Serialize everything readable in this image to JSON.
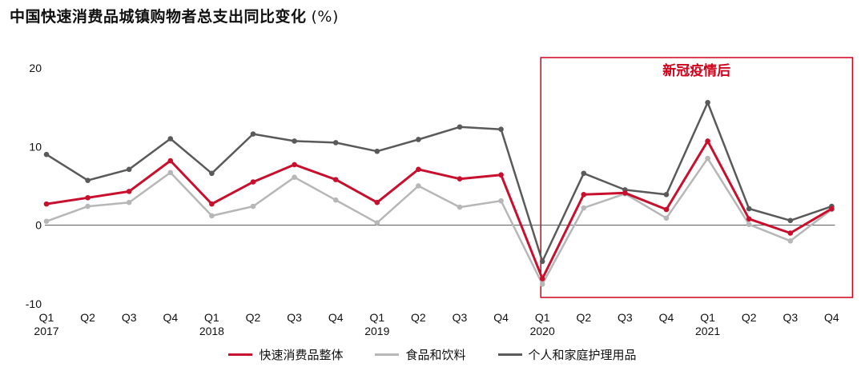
{
  "title": "中国快速消费品城镇购物者总支出同比变化",
  "unit": "(%)",
  "annotation": "新冠疫情后",
  "colors": {
    "overall": "#c8102e",
    "food": "#b7b7b7",
    "personal": "#5a5a5a",
    "annotation_box": "#d0021b",
    "zero_line": "#555555"
  },
  "chart_data": {
    "type": "line",
    "title": "中国快速消费品城镇购物者总支出同比变化 (%)",
    "xlabel": "",
    "ylabel": "",
    "ylim": [
      -10,
      20
    ],
    "yticks": [
      20,
      10,
      0,
      -10
    ],
    "categories": [
      "Q1",
      "Q2",
      "Q3",
      "Q4",
      "Q1",
      "Q2",
      "Q3",
      "Q4",
      "Q1",
      "Q2",
      "Q3",
      "Q4",
      "Q1",
      "Q2",
      "Q3",
      "Q4",
      "Q1",
      "Q2",
      "Q3",
      "Q4"
    ],
    "years": [
      "2017",
      "",
      "",
      "",
      "2018",
      "",
      "",
      "",
      "2019",
      "",
      "",
      "",
      "2020",
      "",
      "",
      "",
      "2021",
      "",
      "",
      ""
    ],
    "highlight": {
      "label": "新冠疫情后",
      "from_index": 12,
      "to_index": 19
    },
    "series": [
      {
        "name": "快速消费品整体",
        "key": "overall",
        "values": [
          2.7,
          3.5,
          4.3,
          8.2,
          2.7,
          5.5,
          7.7,
          5.8,
          2.9,
          7.1,
          5.9,
          6.4,
          -6.8,
          3.9,
          4.1,
          2.0,
          10.7,
          0.8,
          -1.0,
          2.1
        ]
      },
      {
        "name": "食品和饮料",
        "key": "food",
        "values": [
          0.5,
          2.4,
          2.9,
          6.7,
          1.2,
          2.4,
          6.1,
          3.2,
          0.3,
          5.0,
          2.3,
          3.1,
          -7.5,
          2.2,
          4.0,
          0.9,
          8.5,
          0.1,
          -2.0,
          2.0
        ]
      },
      {
        "name": "个人和家庭护理用品",
        "key": "personal",
        "values": [
          9.0,
          5.7,
          7.1,
          11.0,
          6.6,
          11.6,
          10.7,
          10.5,
          9.4,
          10.9,
          12.5,
          12.2,
          -4.6,
          6.6,
          4.5,
          3.9,
          15.6,
          2.1,
          0.6,
          2.4
        ]
      }
    ]
  }
}
